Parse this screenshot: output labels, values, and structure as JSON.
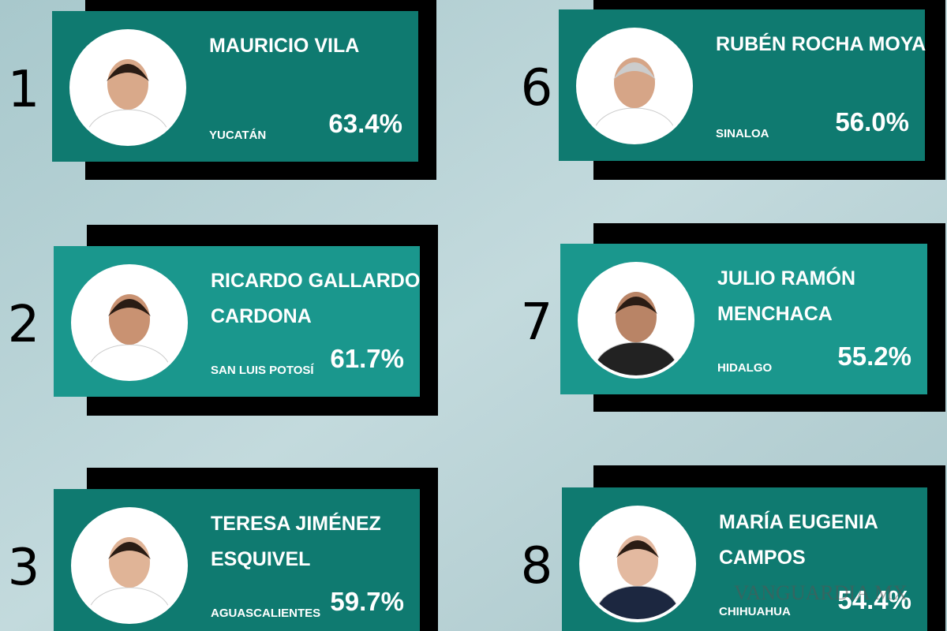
{
  "cards": [
    {
      "rank": "1",
      "name": [
        "MAURICIO VILA"
      ],
      "state": "YUCATÁN",
      "percent": "63.4%"
    },
    {
      "rank": "2",
      "name": [
        "RICARDO GALLARDO",
        "CARDONA"
      ],
      "state": "SAN LUIS POTOSÍ",
      "percent": "61.7%"
    },
    {
      "rank": "3",
      "name": [
        "TERESA JIMÉNEZ",
        "ESQUIVEL"
      ],
      "state": "AGUASCALIENTES",
      "percent": "59.7%"
    },
    {
      "rank": "6",
      "name": [
        "RUBÉN ROCHA MOYA"
      ],
      "state": "SINALOA",
      "percent": "56.0%"
    },
    {
      "rank": "7",
      "name": [
        "JULIO RAMÓN",
        "MENCHACA"
      ],
      "state": "HIDALGO",
      "percent": "55.2%"
    },
    {
      "rank": "8",
      "name": [
        "MARÍA EUGENIA",
        "CAMPOS"
      ],
      "state": "CHIHUAHUA",
      "percent": "54.4%"
    }
  ],
  "watermark": "VANGUARDIA MX"
}
